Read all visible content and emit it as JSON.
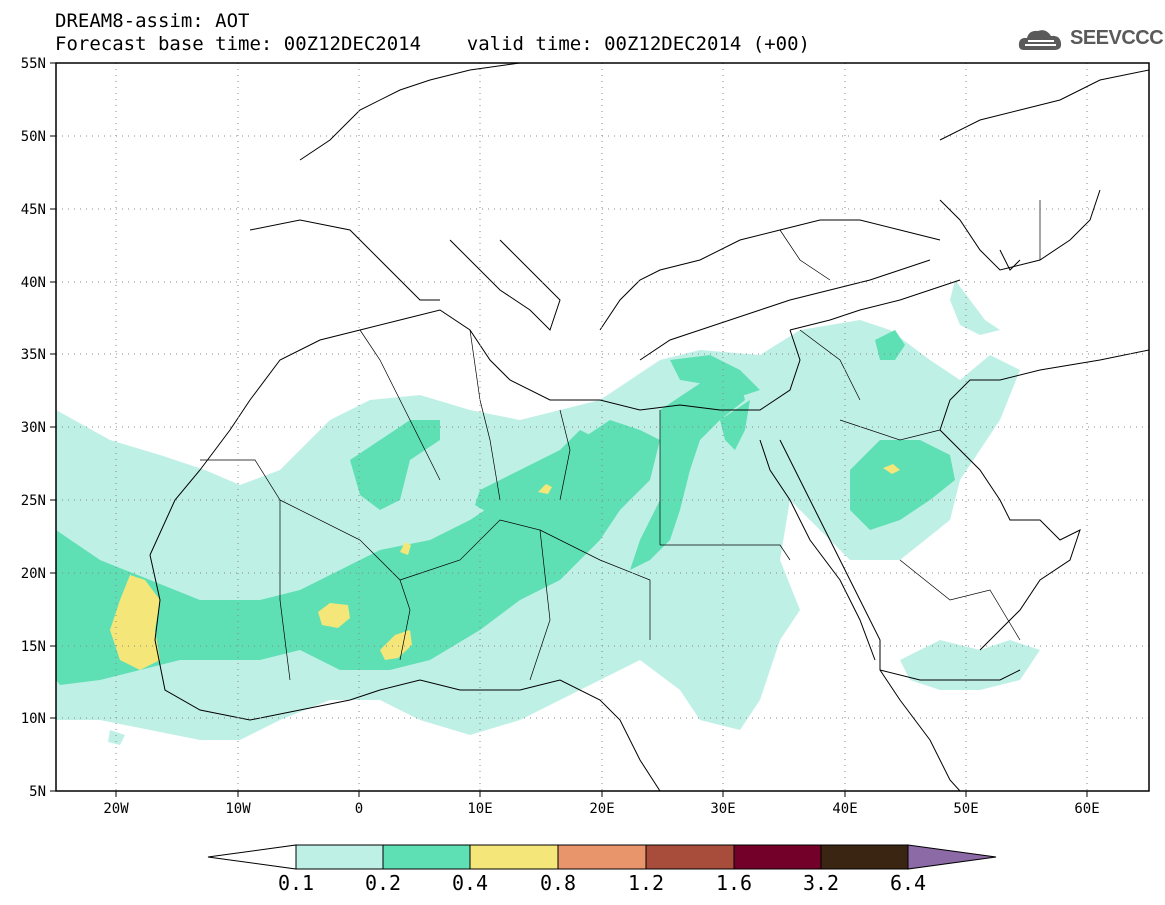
{
  "header": {
    "title_line1": "DREAM8-assim: AOT",
    "title_line2": "Forecast base time: 00Z12DEC2014    valid time: 00Z12DEC2014 (+00)"
  },
  "logo": {
    "text": "SEEVCCC",
    "icon": "cloud-icon"
  },
  "map": {
    "lat_labels": [
      "55N",
      "50N",
      "45N",
      "40N",
      "35N",
      "30N",
      "25N",
      "20N",
      "15N",
      "10N",
      "5N"
    ],
    "lon_labels": [
      "20W",
      "10W",
      "0",
      "10E",
      "20E",
      "30E",
      "40E",
      "50E",
      "60E"
    ],
    "lon_range": [
      -25,
      65
    ],
    "lat_range": [
      5,
      55
    ],
    "grid": "dotted"
  },
  "colorbar": {
    "levels": [
      "0.1",
      "0.2",
      "0.4",
      "0.8",
      "1.2",
      "1.6",
      "3.2",
      "6.4"
    ],
    "colors": [
      "#ffffff",
      "#bff0e6",
      "#5fe0b4",
      "#f5e67a",
      "#e9956b",
      "#a84c3c",
      "#720028",
      "#3a2412",
      "#8c6aa5"
    ]
  },
  "colors": {
    "level1": "#bff0e6",
    "level2": "#5fe0b4",
    "level3": "#f5e67a"
  }
}
